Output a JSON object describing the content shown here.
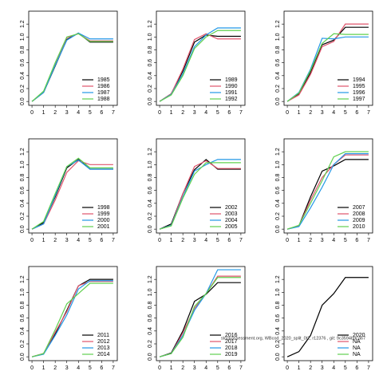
{
  "watermark": "stockassessment.org, WBcod_2020_split_0t2, r12376 , git: 9c3594b9ca67",
  "chart_data": [
    {
      "type": "line",
      "x": [
        0,
        1,
        2,
        3,
        4,
        5,
        6,
        7
      ],
      "xlim": [
        -0.28,
        7.35
      ],
      "xticks": [
        0,
        1,
        2,
        3,
        4,
        5,
        6,
        7
      ],
      "ylim": [
        -0.06,
        1.4
      ],
      "yticks": [
        {
          "value": 0,
          "label": "0.0"
        },
        0.2,
        0.4,
        0.6,
        0.8,
        {
          "value": 1,
          "label": "1.0"
        },
        1.2
      ],
      "legend": "bottomright",
      "series": [
        {
          "name": "1985",
          "color": "#000000",
          "values": [
            0,
            0.14,
            0.55,
            0.96,
            1.06,
            0.92,
            0.92,
            0.92
          ]
        },
        {
          "name": "1986",
          "color": "#df536b",
          "values": [
            0,
            0.15,
            0.57,
            0.99,
            1.05,
            0.94,
            0.94,
            0.94
          ]
        },
        {
          "name": "1987",
          "color": "#2297e6",
          "values": [
            0,
            0.14,
            0.56,
            0.95,
            1.06,
            0.97,
            0.97,
            0.97
          ]
        },
        {
          "name": "1988",
          "color": "#61d04f",
          "values": [
            0,
            0.16,
            0.6,
            1.0,
            1.05,
            0.93,
            0.93,
            0.93
          ]
        }
      ]
    },
    {
      "type": "line",
      "x": [
        0,
        1,
        2,
        3,
        4,
        5,
        6,
        7
      ],
      "xlim": [
        -0.28,
        7.35
      ],
      "xticks": [
        0,
        1,
        2,
        3,
        4,
        5,
        6,
        7
      ],
      "ylim": [
        -0.06,
        1.4
      ],
      "yticks": [
        {
          "value": 0,
          "label": "0.0"
        },
        0.2,
        0.4,
        0.6,
        0.8,
        {
          "value": 1,
          "label": "1.0"
        },
        1.2
      ],
      "legend": "bottomright",
      "series": [
        {
          "name": "1989",
          "color": "#000000",
          "values": [
            0,
            0.12,
            0.47,
            0.92,
            1.03,
            1.01,
            1.01,
            1.01
          ]
        },
        {
          "name": "1990",
          "color": "#df536b",
          "values": [
            0,
            0.12,
            0.5,
            0.96,
            1.05,
            0.97,
            0.97,
            0.97
          ]
        },
        {
          "name": "1991",
          "color": "#2297e6",
          "values": [
            0,
            0.11,
            0.43,
            0.85,
            1.03,
            1.14,
            1.14,
            1.14
          ]
        },
        {
          "name": "1992",
          "color": "#61d04f",
          "values": [
            0,
            0.1,
            0.4,
            0.82,
            1.0,
            1.1,
            1.1,
            1.1
          ]
        }
      ]
    },
    {
      "type": "line",
      "x": [
        0,
        1,
        2,
        3,
        4,
        5,
        6,
        7
      ],
      "xlim": [
        -0.28,
        7.35
      ],
      "xticks": [
        0,
        1,
        2,
        3,
        4,
        5,
        6,
        7
      ],
      "ylim": [
        -0.06,
        1.4
      ],
      "yticks": [
        {
          "value": 0,
          "label": "0.0"
        },
        0.2,
        0.4,
        0.6,
        0.8,
        {
          "value": 1,
          "label": "1.0"
        },
        1.2
      ],
      "legend": "bottomright",
      "series": [
        {
          "name": "1994",
          "color": "#000000",
          "values": [
            0,
            0.12,
            0.45,
            0.88,
            0.95,
            1.15,
            1.15,
            1.15
          ]
        },
        {
          "name": "1995",
          "color": "#df536b",
          "values": [
            0,
            0.1,
            0.42,
            0.85,
            0.93,
            1.2,
            1.2,
            1.2
          ]
        },
        {
          "name": "1996",
          "color": "#2297e6",
          "values": [
            0,
            0.14,
            0.5,
            0.98,
            0.97,
            1.0,
            1.0,
            1.0
          ]
        },
        {
          "name": "1997",
          "color": "#61d04f",
          "values": [
            0,
            0.13,
            0.48,
            0.9,
            1.05,
            1.04,
            1.04,
            1.04
          ]
        }
      ]
    },
    {
      "type": "line",
      "x": [
        0,
        1,
        2,
        3,
        4,
        5,
        6,
        7
      ],
      "xlim": [
        -0.28,
        7.35
      ],
      "xticks": [
        0,
        1,
        2,
        3,
        4,
        5,
        6,
        7
      ],
      "ylim": [
        -0.06,
        1.4
      ],
      "yticks": [
        {
          "value": 0,
          "label": "0.0"
        },
        0.2,
        0.4,
        0.6,
        0.8,
        {
          "value": 1,
          "label": "1.0"
        },
        1.2
      ],
      "legend": "bottomright",
      "series": [
        {
          "name": "1998",
          "color": "#000000",
          "values": [
            0,
            0.1,
            0.5,
            0.95,
            1.08,
            0.93,
            0.93,
            0.93
          ]
        },
        {
          "name": "1999",
          "color": "#df536b",
          "values": [
            0,
            0.08,
            0.45,
            0.88,
            1.06,
            1.0,
            1.0,
            1.0
          ]
        },
        {
          "name": "2000",
          "color": "#2297e6",
          "values": [
            0,
            0.08,
            0.52,
            0.97,
            1.07,
            0.93,
            0.93,
            0.93
          ]
        },
        {
          "name": "2001",
          "color": "#61d04f",
          "values": [
            0,
            0.12,
            0.55,
            0.97,
            1.1,
            0.95,
            0.95,
            0.95
          ]
        }
      ]
    },
    {
      "type": "line",
      "x": [
        0,
        1,
        2,
        3,
        4,
        5,
        6,
        7
      ],
      "xlim": [
        -0.28,
        7.35
      ],
      "xticks": [
        0,
        1,
        2,
        3,
        4,
        5,
        6,
        7
      ],
      "ylim": [
        -0.06,
        1.4
      ],
      "yticks": [
        {
          "value": 0,
          "label": "0.0"
        },
        0.2,
        0.4,
        0.6,
        0.8,
        {
          "value": 1,
          "label": "1.0"
        },
        1.2
      ],
      "legend": "bottomright",
      "series": [
        {
          "name": "2002",
          "color": "#000000",
          "values": [
            0,
            0.08,
            0.55,
            0.92,
            1.08,
            0.93,
            0.93,
            0.93
          ]
        },
        {
          "name": "2003",
          "color": "#df536b",
          "values": [
            0,
            0.06,
            0.55,
            0.97,
            1.06,
            0.94,
            0.94,
            0.94
          ]
        },
        {
          "name": "2004",
          "color": "#2297e6",
          "values": [
            0,
            0.06,
            0.5,
            0.9,
            1.0,
            1.08,
            1.08,
            1.08
          ]
        },
        {
          "name": "2005",
          "color": "#61d04f",
          "values": [
            0,
            0.05,
            0.48,
            0.85,
            1.03,
            1.03,
            1.03,
            1.03
          ]
        }
      ]
    },
    {
      "type": "line",
      "x": [
        0,
        1,
        2,
        3,
        4,
        5,
        6,
        7
      ],
      "xlim": [
        -0.28,
        7.35
      ],
      "xticks": [
        0,
        1,
        2,
        3,
        4,
        5,
        6,
        7
      ],
      "ylim": [
        -0.06,
        1.4
      ],
      "yticks": [
        {
          "value": 0,
          "label": "0.0"
        },
        0.2,
        0.4,
        0.6,
        0.8,
        {
          "value": 1,
          "label": "1.0"
        },
        1.2
      ],
      "legend": "bottomright",
      "series": [
        {
          "name": "2007",
          "color": "#000000",
          "values": [
            0,
            0.05,
            0.5,
            0.9,
            0.98,
            1.08,
            1.08,
            1.08
          ]
        },
        {
          "name": "2008",
          "color": "#df536b",
          "values": [
            0,
            0.05,
            0.45,
            0.8,
            1.0,
            1.15,
            1.15,
            1.15
          ]
        },
        {
          "name": "2009",
          "color": "#2297e6",
          "values": [
            0,
            0.04,
            0.33,
            0.65,
            1.0,
            1.17,
            1.17,
            1.17
          ]
        },
        {
          "name": "2010",
          "color": "#61d04f",
          "values": [
            0,
            0.06,
            0.4,
            0.75,
            1.12,
            1.2,
            1.2,
            1.2
          ]
        }
      ]
    },
    {
      "type": "line",
      "x": [
        0,
        1,
        2,
        3,
        4,
        5,
        6,
        7
      ],
      "xlim": [
        -0.28,
        7.35
      ],
      "xticks": [
        0,
        1,
        2,
        3,
        4,
        5,
        6,
        7
      ],
      "ylim": [
        -0.06,
        1.4
      ],
      "yticks": [
        {
          "value": 0,
          "label": "0.0"
        },
        0.2,
        0.4,
        0.6,
        0.8,
        {
          "value": 1,
          "label": "1.0"
        },
        1.2
      ],
      "legend": "bottomright",
      "series": [
        {
          "name": "2011",
          "color": "#000000",
          "values": [
            0,
            0.05,
            0.35,
            0.72,
            1.1,
            1.2,
            1.2,
            1.2
          ]
        },
        {
          "name": "2012",
          "color": "#df536b",
          "values": [
            0,
            0.05,
            0.38,
            0.7,
            1.1,
            1.17,
            1.17,
            1.17
          ]
        },
        {
          "name": "2013",
          "color": "#2297e6",
          "values": [
            0,
            0.04,
            0.33,
            0.65,
            1.05,
            1.18,
            1.18,
            1.18
          ]
        },
        {
          "name": "2014",
          "color": "#61d04f",
          "values": [
            0,
            0.05,
            0.42,
            0.82,
            0.98,
            1.14,
            1.14,
            1.14
          ]
        }
      ]
    },
    {
      "type": "line",
      "x": [
        0,
        1,
        2,
        3,
        4,
        5,
        6,
        7
      ],
      "xlim": [
        -0.28,
        7.35
      ],
      "xticks": [
        0,
        1,
        2,
        3,
        4,
        5,
        6,
        7
      ],
      "ylim": [
        -0.06,
        1.4
      ],
      "yticks": [
        {
          "value": 0,
          "label": "0.0"
        },
        0.2,
        0.4,
        0.6,
        0.8,
        {
          "value": 1,
          "label": "1.0"
        },
        1.2
      ],
      "legend": "bottomright",
      "series": [
        {
          "name": "2016",
          "color": "#000000",
          "values": [
            0,
            0.06,
            0.4,
            0.86,
            0.97,
            1.15,
            1.15,
            1.15
          ]
        },
        {
          "name": "2017",
          "color": "#df536b",
          "values": [
            0,
            0.05,
            0.37,
            0.75,
            0.98,
            1.25,
            1.25,
            1.25
          ]
        },
        {
          "name": "2018",
          "color": "#2297e6",
          "values": [
            0,
            0.05,
            0.33,
            0.72,
            0.98,
            1.35,
            1.35,
            1.35
          ]
        },
        {
          "name": "2019",
          "color": "#61d04f",
          "values": [
            0,
            0.05,
            0.3,
            0.78,
            0.98,
            1.23,
            1.23,
            1.23
          ]
        }
      ]
    },
    {
      "type": "line",
      "x": [
        0,
        1,
        2,
        3,
        4,
        5,
        6,
        7
      ],
      "xlim": [
        -0.28,
        7.35
      ],
      "xticks": [
        0,
        1,
        2,
        3,
        4,
        5,
        6,
        7
      ],
      "ylim": [
        -0.06,
        1.4
      ],
      "yticks": [
        {
          "value": 0,
          "label": "0.0"
        },
        0.2,
        0.4,
        0.6,
        0.8,
        {
          "value": 1,
          "label": "1.0"
        },
        1.2
      ],
      "legend": "bottomright",
      "series": [
        {
          "name": "2020",
          "color": "#000000",
          "values": [
            0,
            0.08,
            0.33,
            0.8,
            0.98,
            1.23,
            1.23,
            1.23
          ]
        },
        {
          "name": "NA",
          "color": "#df536b",
          "values": [
            null,
            null,
            null,
            null,
            null,
            null,
            null,
            null
          ]
        },
        {
          "name": "NA",
          "color": "#2297e6",
          "values": [
            null,
            null,
            null,
            null,
            null,
            null,
            null,
            null
          ]
        },
        {
          "name": "NA",
          "color": "#61d04f",
          "values": [
            null,
            null,
            null,
            null,
            null,
            null,
            null,
            null
          ]
        }
      ]
    }
  ]
}
